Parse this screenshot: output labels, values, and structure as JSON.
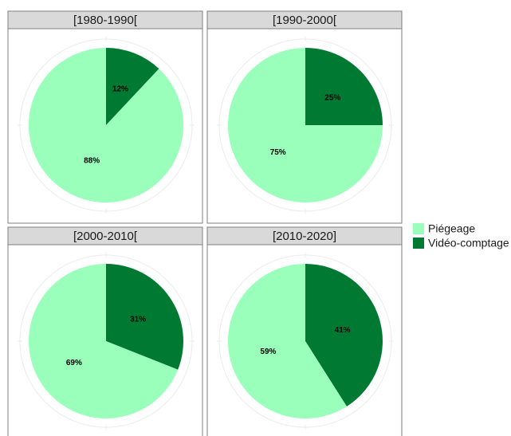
{
  "chart_data": [
    {
      "type": "pie",
      "title": "[1980-1990[",
      "categories": [
        "Piégeage",
        "Vidéo-comptage"
      ],
      "values": [
        88,
        12
      ],
      "value_labels": [
        "88%",
        "12%"
      ],
      "colors": [
        "#99ffbb",
        "#007a33"
      ]
    },
    {
      "type": "pie",
      "title": "[1990-2000[",
      "categories": [
        "Piégeage",
        "Vidéo-comptage"
      ],
      "values": [
        75,
        25
      ],
      "value_labels": [
        "75%",
        "25%"
      ],
      "colors": [
        "#99ffbb",
        "#007a33"
      ]
    },
    {
      "type": "pie",
      "title": "[2000-2010[",
      "categories": [
        "Piégeage",
        "Vidéo-comptage"
      ],
      "values": [
        69,
        31
      ],
      "value_labels": [
        "69%",
        "31%"
      ],
      "colors": [
        "#99ffbb",
        "#007a33"
      ]
    },
    {
      "type": "pie",
      "title": "[2010-2020]",
      "categories": [
        "Piégeage",
        "Vidéo-comptage"
      ],
      "values": [
        59,
        41
      ],
      "value_labels": [
        "59%",
        "41%"
      ],
      "colors": [
        "#99ffbb",
        "#007a33"
      ]
    }
  ]
}
